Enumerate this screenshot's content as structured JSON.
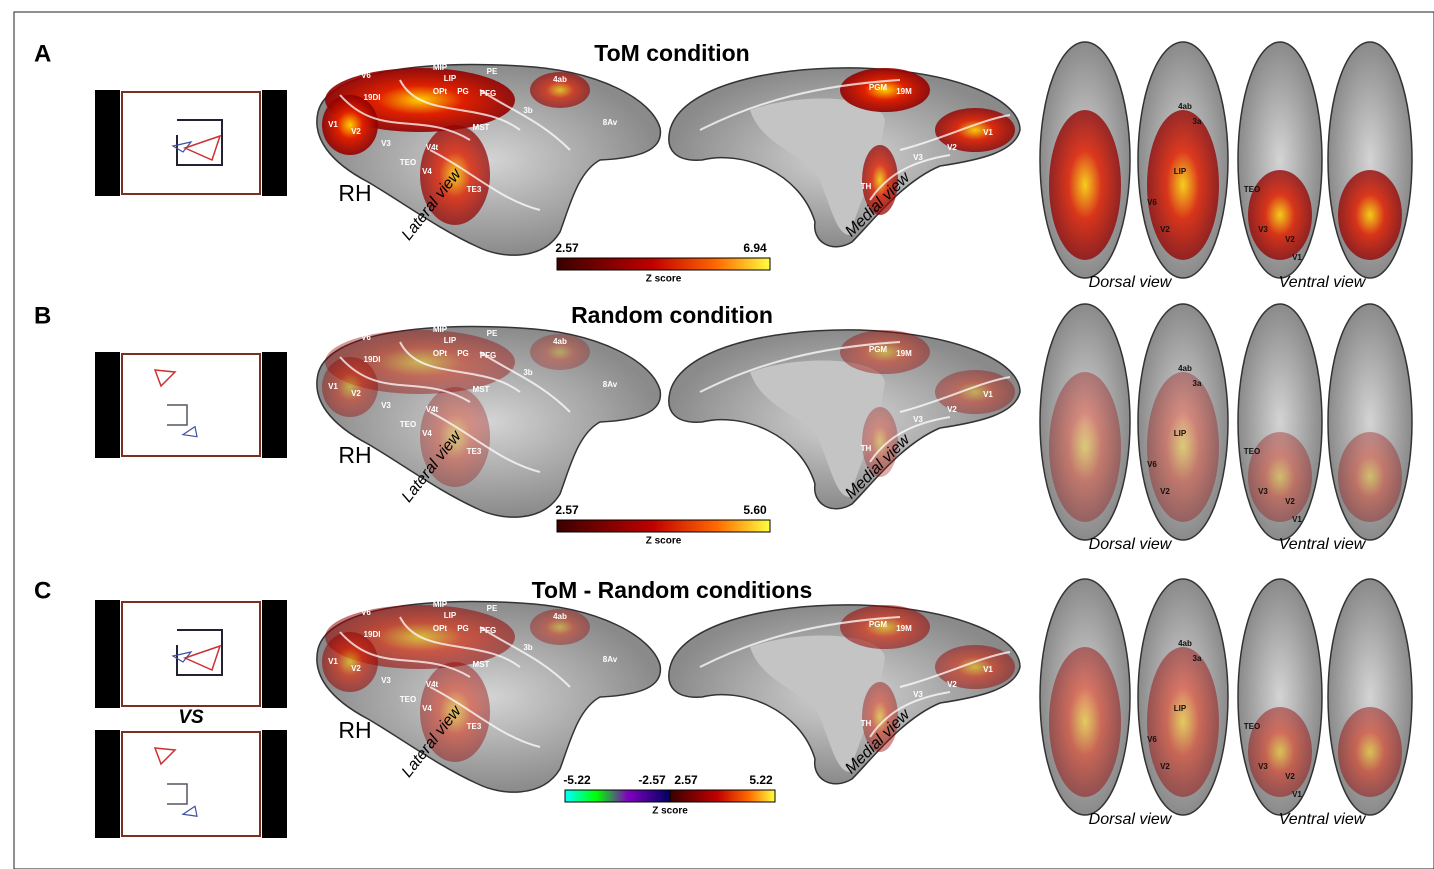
{
  "panels": [
    {
      "letter": "A",
      "title": "ToM condition",
      "hemisphere": "RH",
      "lateral_label": "Lateral view",
      "medial_label": "Medial view",
      "dorsal_label": "Dorsal view",
      "ventral_label": "Ventral view",
      "colorbar": {
        "ticks": [
          "2.57",
          "6.94"
        ],
        "label": "Z score"
      },
      "lateral_regions": [
        "V1",
        "V2",
        "V3",
        "V6",
        "MIP",
        "LIP",
        "PE",
        "19DI",
        "OPt",
        "PG",
        "PFG",
        "3b",
        "4ab",
        "V4t",
        "MST",
        "TEO",
        "V4",
        "TE3",
        "8Av"
      ],
      "medial_regions": [
        "PGM",
        "19M",
        "V1",
        "V2",
        "V3",
        "TH"
      ],
      "dorsal_regions": [
        "4ab",
        "3a",
        "LIP",
        "V6",
        "V2"
      ],
      "ventral_regions": [
        "V3",
        "V2",
        "V1",
        "TEO"
      ]
    },
    {
      "letter": "B",
      "title": "Random condition",
      "hemisphere": "RH",
      "lateral_label": "Lateral view",
      "medial_label": "Medial view",
      "dorsal_label": "Dorsal view",
      "ventral_label": "Ventral view",
      "colorbar": {
        "ticks": [
          "2.57",
          "5.60"
        ],
        "label": "Z score"
      },
      "lateral_regions": [
        "V1",
        "V2",
        "V3",
        "V6",
        "MIP",
        "LIP",
        "PE",
        "19DI",
        "OPt",
        "PG",
        "PFG",
        "3b",
        "4ab",
        "V4t",
        "MST",
        "TEO",
        "V4",
        "TE3",
        "8Av"
      ],
      "medial_regions": [
        "PGM",
        "19M",
        "V1",
        "V2",
        "V3",
        "TH"
      ],
      "dorsal_regions": [
        "4ab",
        "3a",
        "LIP",
        "V6",
        "V2"
      ],
      "ventral_regions": [
        "V3",
        "V2",
        "V1",
        "TEO"
      ]
    },
    {
      "letter": "C",
      "title": "ToM - Random conditions",
      "hemisphere": "RH",
      "lateral_label": "Lateral view",
      "medial_label": "Medial view",
      "dorsal_label": "Dorsal view",
      "ventral_label": "Ventral view",
      "colorbar": {
        "ticks": [
          "-5.22",
          "-2.57",
          "2.57",
          "5.22"
        ],
        "label": "Z score"
      },
      "lateral_regions": [
        "V1",
        "V2",
        "V3",
        "V6",
        "MIP",
        "LIP",
        "PE",
        "19DI",
        "OPt",
        "PG",
        "PFG",
        "3b",
        "4ab",
        "V4t",
        "MST",
        "TEO",
        "V4",
        "TE3",
        "8Av"
      ],
      "medial_regions": [
        "PGM",
        "19M",
        "V1",
        "V2",
        "V3",
        "TH"
      ],
      "dorsal_regions": [
        "4ab",
        "3a",
        "LIP",
        "V6",
        "V2"
      ],
      "ventral_regions": [
        "V3",
        "V2",
        "V1",
        "TEO"
      ]
    }
  ],
  "versus": "VS"
}
